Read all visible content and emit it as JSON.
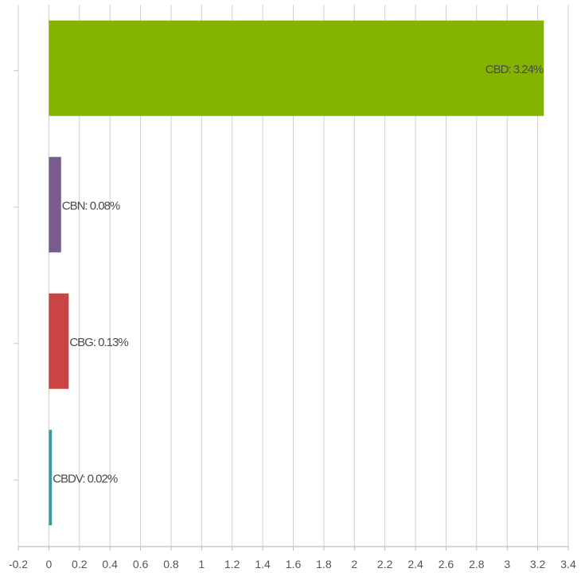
{
  "chart_data": {
    "type": "bar",
    "orientation": "horizontal",
    "categories": [
      "CBD",
      "CBN",
      "CBG",
      "CBDV"
    ],
    "values": [
      3.24,
      0.08,
      0.13,
      0.02
    ],
    "data_labels": [
      "CBD: 3.24%",
      "CBN: 0.08%",
      "CBG: 0.13%",
      "CBDV: 0.02%"
    ],
    "colors": [
      "#83b500",
      "#7a5b8e",
      "#c94443",
      "#3a9aa3"
    ],
    "xlim": [
      -0.2,
      3.4
    ],
    "x_ticks": [
      "-0.2",
      "0",
      "0.2",
      "0.4",
      "0.6",
      "0.8",
      "1",
      "1.2",
      "1.4",
      "1.6",
      "1.8",
      "2",
      "2.2",
      "2.4",
      "2.6",
      "2.8",
      "3",
      "3.2",
      "3.4"
    ],
    "grid": true,
    "gridline_color": "#d0d0d0",
    "title": "",
    "xlabel": "",
    "ylabel": ""
  }
}
